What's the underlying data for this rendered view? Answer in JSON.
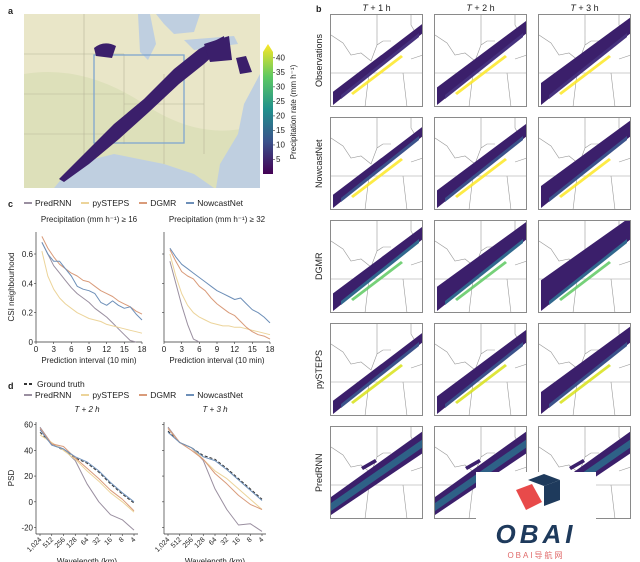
{
  "panels": {
    "a": {
      "letter": "a"
    },
    "b": {
      "letter": "b"
    },
    "c": {
      "letter": "c"
    },
    "d": {
      "letter": "d"
    }
  },
  "colors": {
    "PredRNN": "#9a8fa0",
    "pySTEPS": "#ecd49a",
    "DGMR": "#d99b7a",
    "NowcastNet": "#6d8fb8",
    "GroundTruth": "#333333",
    "map_land": "#e9e6c8",
    "map_water": "#bfcfe0",
    "box": "#7fa6cf",
    "precip_dark": "#3b1f6b"
  },
  "map_panel": {
    "colorbar": {
      "label": "Precipitation rate (mm h⁻¹)",
      "ticks": [
        "40",
        "35",
        "30",
        "25",
        "20",
        "15",
        "10",
        "5"
      ],
      "colormap": "viridis"
    }
  },
  "grid_panel": {
    "columns": [
      "T + 1 h",
      "T + 2 h",
      "T + 3 h"
    ],
    "rows": [
      "Observations",
      "NowcastNet",
      "DGMR",
      "pySTEPS",
      "PredRNN"
    ]
  },
  "watermark": {
    "brand": "OBAI",
    "subtitle": "OBAI导航网"
  },
  "chart_data": [
    {
      "type": "line",
      "panel": "c-left",
      "title": "Precipitation (mm h⁻¹) ≥ 16",
      "xlabel": "Prediction interval (10 min)",
      "ylabel": "CSI neighbourhood",
      "xlim": [
        0,
        18
      ],
      "ylim": [
        0,
        0.75
      ],
      "xticks": [
        "0",
        "3",
        "6",
        "9",
        "12",
        "15",
        "18"
      ],
      "yticks": [
        "0",
        "0.2",
        "0.4",
        "0.6"
      ],
      "x": [
        1,
        2,
        3,
        4,
        5,
        6,
        7,
        8,
        9,
        10,
        11,
        12,
        13,
        14,
        15,
        16,
        17,
        18
      ],
      "series": [
        {
          "name": "PredRNN",
          "values": [
            0.68,
            0.6,
            0.52,
            0.47,
            0.42,
            0.37,
            0.33,
            0.3,
            0.27,
            0.23,
            0.2,
            0.17,
            0.13,
            0.09,
            0.05,
            0.01,
            0.0,
            null
          ]
        },
        {
          "name": "pySTEPS",
          "values": [
            0.62,
            0.45,
            0.36,
            0.3,
            0.26,
            0.23,
            0.2,
            0.18,
            0.16,
            0.15,
            0.14,
            0.12,
            0.11,
            0.1,
            0.09,
            0.08,
            0.07,
            0.06
          ]
        },
        {
          "name": "DGMR",
          "values": [
            0.72,
            0.64,
            0.58,
            0.53,
            0.5,
            0.47,
            0.45,
            0.42,
            0.41,
            0.38,
            0.35,
            0.33,
            0.31,
            0.28,
            0.26,
            0.24,
            0.21,
            0.19
          ]
        },
        {
          "name": "NowcastNet",
          "values": [
            0.68,
            0.6,
            0.55,
            0.55,
            0.5,
            0.45,
            0.38,
            0.36,
            0.35,
            0.33,
            0.27,
            0.25,
            0.28,
            0.25,
            0.23,
            0.24,
            0.19,
            0.15
          ]
        }
      ],
      "legend": [
        "PredRNN",
        "pySTEPS",
        "DGMR",
        "NowcastNet"
      ],
      "legend_position": "top"
    },
    {
      "type": "line",
      "panel": "c-right",
      "title": "Precipitation (mm h⁻¹) ≥ 32",
      "xlabel": "Prediction interval (10 min)",
      "ylabel": "",
      "xlim": [
        0,
        18
      ],
      "ylim": [
        0,
        0.75
      ],
      "xticks": [
        "0",
        "3",
        "6",
        "9",
        "12",
        "15",
        "18"
      ],
      "yticks": [],
      "x": [
        1,
        2,
        3,
        4,
        5,
        6,
        7,
        8,
        9,
        10,
        11,
        12,
        13,
        14,
        15,
        16,
        17,
        18
      ],
      "series": [
        {
          "name": "PredRNN",
          "values": [
            0.55,
            0.4,
            0.25,
            0.12,
            0.02,
            0.0,
            null,
            null,
            null,
            null,
            null,
            null,
            null,
            null,
            null,
            null,
            null,
            null
          ]
        },
        {
          "name": "pySTEPS",
          "values": [
            0.6,
            0.45,
            0.33,
            0.25,
            0.2,
            0.17,
            0.15,
            0.13,
            0.12,
            0.11,
            0.11,
            0.1,
            0.1,
            0.09,
            0.08,
            0.07,
            0.06,
            0.05
          ]
        },
        {
          "name": "DGMR",
          "values": [
            0.63,
            0.55,
            0.48,
            0.45,
            0.43,
            0.38,
            0.35,
            0.3,
            0.26,
            0.23,
            0.2,
            0.18,
            0.14,
            0.1,
            0.07,
            0.05,
            0.04,
            0.02
          ]
        },
        {
          "name": "NowcastNet",
          "values": [
            0.64,
            0.58,
            0.53,
            0.5,
            0.47,
            0.44,
            0.41,
            0.38,
            0.35,
            0.33,
            0.31,
            0.29,
            0.3,
            0.26,
            0.22,
            0.2,
            0.17,
            0.13
          ]
        }
      ]
    },
    {
      "type": "line",
      "panel": "d-left",
      "title": "T + 2 h",
      "xlabel": "Wavelength (km)",
      "ylabel": "PSD",
      "xticks": [
        "1,024",
        "512",
        "256",
        "128",
        "64",
        "32",
        "16",
        "8",
        "4"
      ],
      "yticks": [
        "-20",
        "0",
        "20",
        "40",
        "60"
      ],
      "ylim": [
        -25,
        62
      ],
      "x_index": [
        0,
        1,
        2,
        3,
        4,
        5,
        6,
        7,
        8
      ],
      "series": [
        {
          "name": "Ground truth",
          "style": "dashed",
          "values": [
            54,
            45,
            40,
            34,
            30,
            23,
            14,
            6,
            -1
          ]
        },
        {
          "name": "PredRNN",
          "values": [
            58,
            45,
            41,
            32,
            14,
            0,
            -10,
            -14,
            -22
          ]
        },
        {
          "name": "pySTEPS",
          "values": [
            52,
            46,
            40,
            33,
            24,
            16,
            7,
            0,
            -8
          ]
        },
        {
          "name": "DGMR",
          "values": [
            57,
            45,
            43,
            34,
            26,
            18,
            9,
            2,
            -7
          ]
        },
        {
          "name": "NowcastNet",
          "values": [
            56,
            44,
            41,
            35,
            31,
            24,
            15,
            7,
            0
          ]
        }
      ],
      "legend": [
        "Ground truth",
        "PredRNN",
        "pySTEPS",
        "DGMR",
        "NowcastNet"
      ]
    },
    {
      "type": "line",
      "panel": "d-right",
      "title": "T + 3 h",
      "xlabel": "Wavelength (km)",
      "ylabel": "",
      "xticks": [
        "1,024",
        "512",
        "256",
        "128",
        "64",
        "32",
        "16",
        "8",
        "4"
      ],
      "yticks": [],
      "ylim": [
        -25,
        62
      ],
      "x_index": [
        0,
        1,
        2,
        3,
        4,
        5,
        6,
        7,
        8
      ],
      "series": [
        {
          "name": "Ground truth",
          "style": "dashed",
          "values": [
            55,
            46,
            42,
            36,
            33,
            26,
            18,
            10,
            2
          ]
        },
        {
          "name": "PredRNN",
          "values": [
            58,
            46,
            42,
            32,
            10,
            -6,
            -18,
            -17,
            -23
          ]
        },
        {
          "name": "pySTEPS",
          "values": [
            57,
            46,
            42,
            33,
            24,
            18,
            10,
            2,
            -6
          ]
        },
        {
          "name": "DGMR",
          "values": [
            57,
            46,
            40,
            33,
            22,
            14,
            5,
            -2,
            -6
          ]
        },
        {
          "name": "NowcastNet",
          "values": [
            54,
            46,
            42,
            35,
            32,
            25,
            17,
            9,
            1
          ]
        }
      ]
    }
  ]
}
